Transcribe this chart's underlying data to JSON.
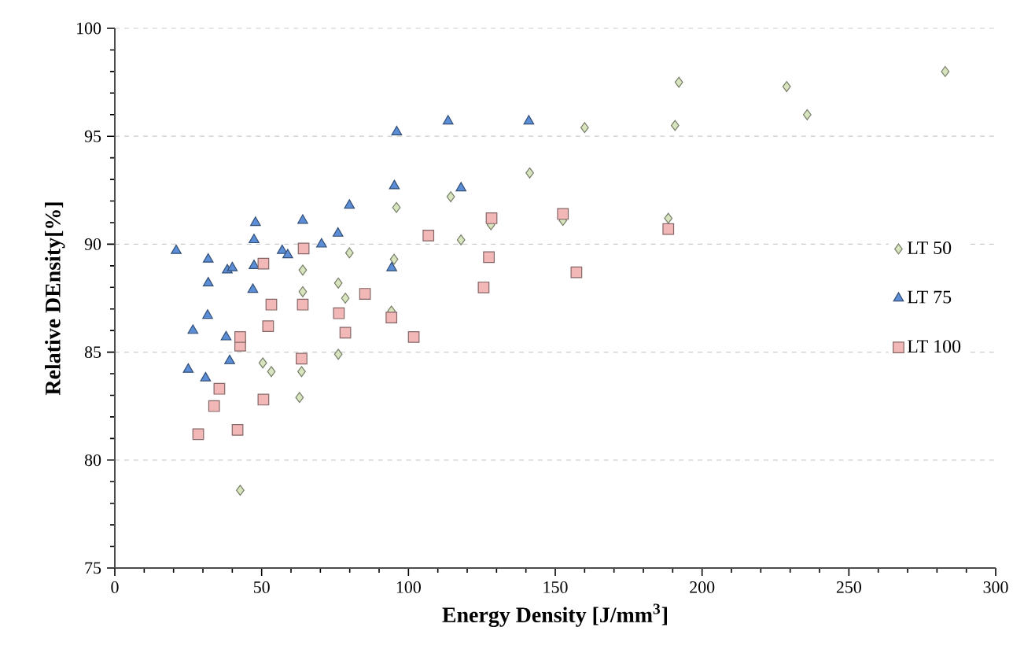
{
  "chart_data": {
    "type": "scatter",
    "xlabel": "Energy Density [J/mm$^{3}$]",
    "ylabel": "Relative DEnsity[%]",
    "xlim": [
      0,
      300
    ],
    "xticks": [
      0,
      50,
      100,
      150,
      200,
      250,
      300
    ],
    "ylim": [
      75,
      100
    ],
    "yticks": [
      75,
      80,
      85,
      90,
      95,
      100
    ],
    "grid": "y",
    "legend": "right",
    "series": [
      {
        "name": "LT 50",
        "color": "#d7e4bd",
        "marker": "diamond",
        "x": [
          42.7,
          50.4,
          53.3,
          62.9,
          63.6,
          64.0,
          64.0,
          76.1,
          76.1,
          78.5,
          79.9,
          94.2,
          95.1,
          95.9,
          114.4,
          117.9,
          128.1,
          141.3,
          152.6,
          160,
          188.5,
          190.8,
          192.1,
          228.8,
          235.8,
          282.8
        ],
        "values": [
          78.6,
          84.5,
          84.1,
          82.9,
          84.1,
          87.8,
          88.8,
          84.9,
          88.2,
          87.5,
          89.6,
          86.9,
          89.3,
          91.7,
          92.2,
          90.2,
          90.9,
          93.3,
          91.1,
          95.4,
          91.2,
          95.5,
          97.5,
          97.3,
          96.0,
          98.0
        ]
      },
      {
        "name": "LT 75",
        "color": "#5b8ed6",
        "marker": "triangle",
        "x": [
          20.9,
          25.0,
          26.6,
          30.9,
          31.6,
          31.8,
          31.8,
          37.9,
          38.3,
          39.1,
          40.0,
          47.0,
          47.4,
          47.4,
          47.9,
          57.0,
          58.9,
          64.0,
          70.4,
          76.0,
          79.9,
          94.3,
          95.2,
          96,
          113.5,
          117.9,
          141
        ],
        "values": [
          89.7,
          84.2,
          86.0,
          83.8,
          86.7,
          88.2,
          89.3,
          85.7,
          88.8,
          84.6,
          88.9,
          87.9,
          89.0,
          90.2,
          91.0,
          89.7,
          89.5,
          91.1,
          90.0,
          90.5,
          91.8,
          88.9,
          92.7,
          95.2,
          95.7,
          92.6,
          95.7
        ]
      },
      {
        "name": "LT 100",
        "color": "#f2b8b8",
        "marker": "square",
        "x": [
          28.4,
          33.8,
          35.6,
          41.8,
          42.7,
          42.7,
          50.6,
          50.6,
          52.2,
          53.3,
          63.6,
          64.0,
          64.3,
          76.3,
          78.5,
          85.2,
          94.2,
          101.8,
          106.8,
          125.6,
          127.4,
          128.3,
          152.6,
          157.2,
          188.5
        ],
        "values": [
          81.2,
          82.5,
          83.3,
          81.4,
          85.3,
          85.7,
          82.8,
          89.1,
          86.2,
          87.2,
          84.7,
          87.2,
          89.8,
          86.8,
          85.9,
          87.7,
          86.6,
          85.7,
          90.4,
          88.0,
          89.4,
          91.2,
          91.4,
          88.7,
          90.7
        ]
      }
    ]
  }
}
